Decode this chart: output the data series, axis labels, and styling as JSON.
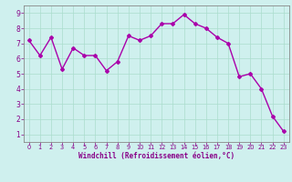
{
  "x": [
    0,
    1,
    2,
    3,
    4,
    5,
    6,
    7,
    8,
    9,
    10,
    11,
    12,
    13,
    14,
    15,
    16,
    17,
    18,
    19,
    20,
    21,
    22,
    23
  ],
  "y": [
    7.2,
    6.2,
    7.4,
    5.3,
    6.7,
    6.2,
    6.2,
    5.2,
    5.8,
    7.5,
    7.2,
    7.5,
    8.3,
    8.3,
    8.9,
    8.3,
    8.0,
    7.4,
    7.0,
    4.8,
    5.0,
    4.0,
    2.2,
    1.2
  ],
  "line_color": "#aa00aa",
  "marker": "D",
  "markersize": 2.0,
  "linewidth": 1.0,
  "xlabel": "Windchill (Refroidissement éolien,°C)",
  "xlim": [
    -0.5,
    23.5
  ],
  "ylim": [
    0.5,
    9.5
  ],
  "yticks": [
    1,
    2,
    3,
    4,
    5,
    6,
    7,
    8,
    9
  ],
  "xticks": [
    0,
    1,
    2,
    3,
    4,
    5,
    6,
    7,
    8,
    9,
    10,
    11,
    12,
    13,
    14,
    15,
    16,
    17,
    18,
    19,
    20,
    21,
    22,
    23
  ],
  "bg_color": "#cff0ee",
  "grid_color": "#aaddcc",
  "spine_color": "#888888",
  "tick_color": "#880088",
  "label_color": "#880088",
  "xlabel_fontsize": 5.5,
  "xtick_fontsize": 4.8,
  "ytick_fontsize": 5.5
}
